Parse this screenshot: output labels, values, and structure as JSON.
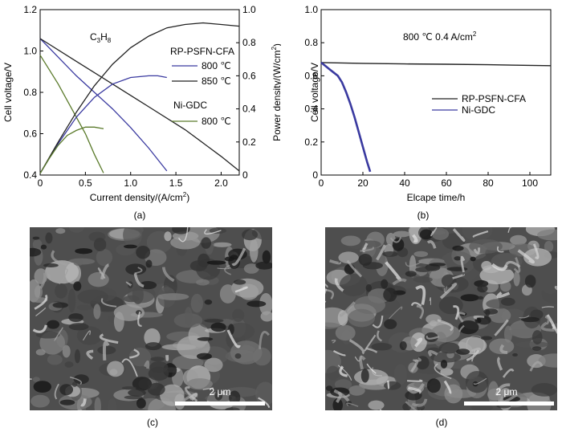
{
  "panels": {
    "a": {
      "caption": "(a)",
      "chart_data": {
        "type": "line",
        "xlabel": "Current density/(A/cm",
        "xlabel_sup": "2",
        "xlabel_tail": ")",
        "ylabel": "Cell voltage/V",
        "y2label": "Power density/(W/cm",
        "y2label_sup": "2",
        "y2label_tail": ")",
        "xlim": [
          0,
          2.2
        ],
        "ylim": [
          0.4,
          1.2
        ],
        "y2lim": [
          0,
          1.0
        ],
        "xticks": [
          "0",
          "0.5",
          "1.0",
          "1.5",
          "2.0"
        ],
        "yticks": [
          "0.4",
          "0.6",
          "0.8",
          "1.0",
          "1.2"
        ],
        "y2ticks": [
          "0",
          "0.2",
          "0.4",
          "0.6",
          "0.8",
          "1.0"
        ],
        "fuel_label": "C",
        "fuel_sub1": "3",
        "fuel_mid": "H",
        "fuel_sub2": "8",
        "legend": {
          "group1": "RP-PSFN-CFA",
          "group1_items": [
            "800 ℃",
            "850 ℃"
          ],
          "group2": "Ni-GDC",
          "group2_items": [
            "800 ℃"
          ]
        },
        "colors": {
          "rp800": "#3a3aa0",
          "rp850": "#222222",
          "nigdc800": "#5a7a2a"
        },
        "series": [
          {
            "axis": "left",
            "color_key": "rp800",
            "x": [
              0,
              0.2,
              0.4,
              0.6,
              0.8,
              1.0,
              1.2,
              1.4
            ],
            "y": [
              1.06,
              0.97,
              0.88,
              0.8,
              0.72,
              0.63,
              0.53,
              0.42
            ]
          },
          {
            "axis": "left",
            "color_key": "rp850",
            "x": [
              0,
              0.4,
              0.8,
              1.2,
              1.6,
              2.0,
              2.2
            ],
            "y": [
              1.06,
              0.95,
              0.84,
              0.73,
              0.62,
              0.49,
              0.42
            ]
          },
          {
            "axis": "left",
            "color_key": "nigdc800",
            "x": [
              0,
              0.1,
              0.2,
              0.3,
              0.4,
              0.5,
              0.6,
              0.7
            ],
            "y": [
              0.98,
              0.91,
              0.84,
              0.76,
              0.68,
              0.6,
              0.5,
              0.41
            ]
          },
          {
            "axis": "right",
            "color_key": "rp800",
            "x": [
              0,
              0.2,
              0.4,
              0.6,
              0.8,
              1.0,
              1.2,
              1.3,
              1.4
            ],
            "y": [
              0.01,
              0.19,
              0.35,
              0.47,
              0.55,
              0.59,
              0.6,
              0.6,
              0.59
            ]
          },
          {
            "axis": "right",
            "color_key": "rp850",
            "x": [
              0,
              0.2,
              0.4,
              0.6,
              0.8,
              1.0,
              1.2,
              1.4,
              1.6,
              1.8,
              2.0,
              2.2
            ],
            "y": [
              0.01,
              0.2,
              0.38,
              0.54,
              0.67,
              0.77,
              0.84,
              0.89,
              0.91,
              0.92,
              0.91,
              0.9
            ]
          },
          {
            "axis": "right",
            "color_key": "nigdc800",
            "x": [
              0,
              0.1,
              0.2,
              0.3,
              0.4,
              0.5,
              0.6,
              0.7
            ],
            "y": [
              0.01,
              0.1,
              0.18,
              0.24,
              0.27,
              0.29,
              0.29,
              0.28
            ]
          }
        ]
      }
    },
    "b": {
      "caption": "(b)",
      "chart_data": {
        "type": "line",
        "xlabel": "Elcape time/h",
        "ylabel": "Cell voltage/V",
        "xlim": [
          0,
          110
        ],
        "ylim": [
          0,
          1.0
        ],
        "xticks": [
          "0",
          "20",
          "40",
          "60",
          "80",
          "100"
        ],
        "yticks": [
          "0",
          "0.2",
          "0.4",
          "0.6",
          "0.8",
          "1.0"
        ],
        "annotation": "800 ℃  0.4 A/cm",
        "annotation_sup": "2",
        "legend": [
          "RP-PSFN-CFA",
          "Ni-GDC"
        ],
        "colors": {
          "rp": "#222222",
          "nigdc": "#3a3aa0"
        },
        "series": [
          {
            "name": "RP-PSFN-CFA",
            "color_key": "rp",
            "x": [
              0,
              20,
              40,
              60,
              80,
              100,
              110
            ],
            "y": [
              0.68,
              0.675,
              0.672,
              0.67,
              0.667,
              0.663,
              0.661
            ]
          },
          {
            "name": "Ni-GDC",
            "color_key": "nigdc",
            "x": [
              0,
              2,
              4,
              6,
              8,
              10,
              12,
              14,
              16,
              18,
              20,
              22,
              23.5
            ],
            "y": [
              0.68,
              0.66,
              0.64,
              0.62,
              0.6,
              0.56,
              0.5,
              0.43,
              0.35,
              0.26,
              0.17,
              0.08,
              0.02
            ]
          }
        ]
      }
    },
    "c": {
      "caption": "(c)",
      "scale_label": "2 μm"
    },
    "d": {
      "caption": "(d)",
      "scale_label": "2 μm"
    }
  }
}
